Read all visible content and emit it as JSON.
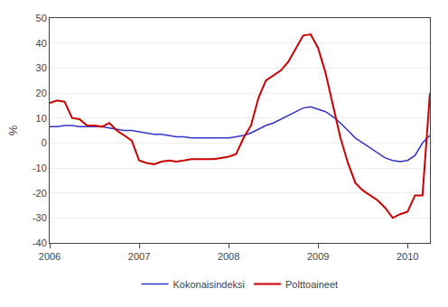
{
  "chart_data": {
    "type": "line",
    "ylabel": "%",
    "categories": [
      "2006",
      null,
      null,
      null,
      null,
      null,
      null,
      null,
      null,
      null,
      null,
      null,
      "2007",
      null,
      null,
      null,
      null,
      null,
      null,
      null,
      null,
      null,
      null,
      null,
      "2008",
      null,
      null,
      null,
      null,
      null,
      null,
      null,
      null,
      null,
      null,
      null,
      "2009",
      null,
      null,
      null,
      null,
      null,
      null,
      null,
      null,
      null,
      null,
      null,
      "2010",
      null,
      null,
      null
    ],
    "series": [
      {
        "name": "Kokonaisindeksi",
        "color": "#3333CC",
        "values": [
          6.5,
          6.5,
          7.0,
          7.0,
          6.5,
          6.5,
          6.5,
          6.5,
          6.0,
          5.5,
          5.0,
          5.0,
          4.5,
          4.0,
          3.5,
          3.5,
          3.0,
          2.5,
          2.5,
          2.0,
          2.0,
          2.0,
          2.0,
          2.0,
          2.0,
          2.5,
          3.0,
          4.0,
          5.5,
          7.0,
          8.0,
          9.5,
          11.0,
          12.5,
          14.0,
          14.5,
          13.5,
          12.5,
          10.5,
          8.0,
          5.0,
          2.0,
          0.0,
          -2.0,
          -4.0,
          -6.0,
          -7.0,
          -7.5,
          -7.0,
          -5.0,
          0.0,
          3.0
        ]
      },
      {
        "name": "Polttoaineet",
        "color": "#CC0000",
        "values": [
          16.0,
          17.0,
          16.5,
          10.0,
          9.5,
          7.0,
          7.0,
          6.5,
          8.0,
          5.0,
          3.0,
          1.0,
          -7.0,
          -8.0,
          -8.5,
          -7.5,
          -7.0,
          -7.5,
          -7.0,
          -6.5,
          -6.5,
          -6.5,
          -6.5,
          -6.0,
          -5.5,
          -4.5,
          2.0,
          7.0,
          18.0,
          25.0,
          27.0,
          29.0,
          32.5,
          38.0,
          43.0,
          43.5,
          38.0,
          28.0,
          15.0,
          2.0,
          -8.0,
          -16.0,
          -19.0,
          -21.0,
          -23.0,
          -26.0,
          -30.0,
          -28.5,
          -27.5,
          -21.0,
          -21.0,
          20.0
        ]
      }
    ],
    "ylim": [
      -40,
      50
    ],
    "yticks": [
      -40,
      -30,
      -20,
      -10,
      0,
      10,
      20,
      30,
      40,
      50
    ],
    "grid": true,
    "legend": "bottom"
  }
}
